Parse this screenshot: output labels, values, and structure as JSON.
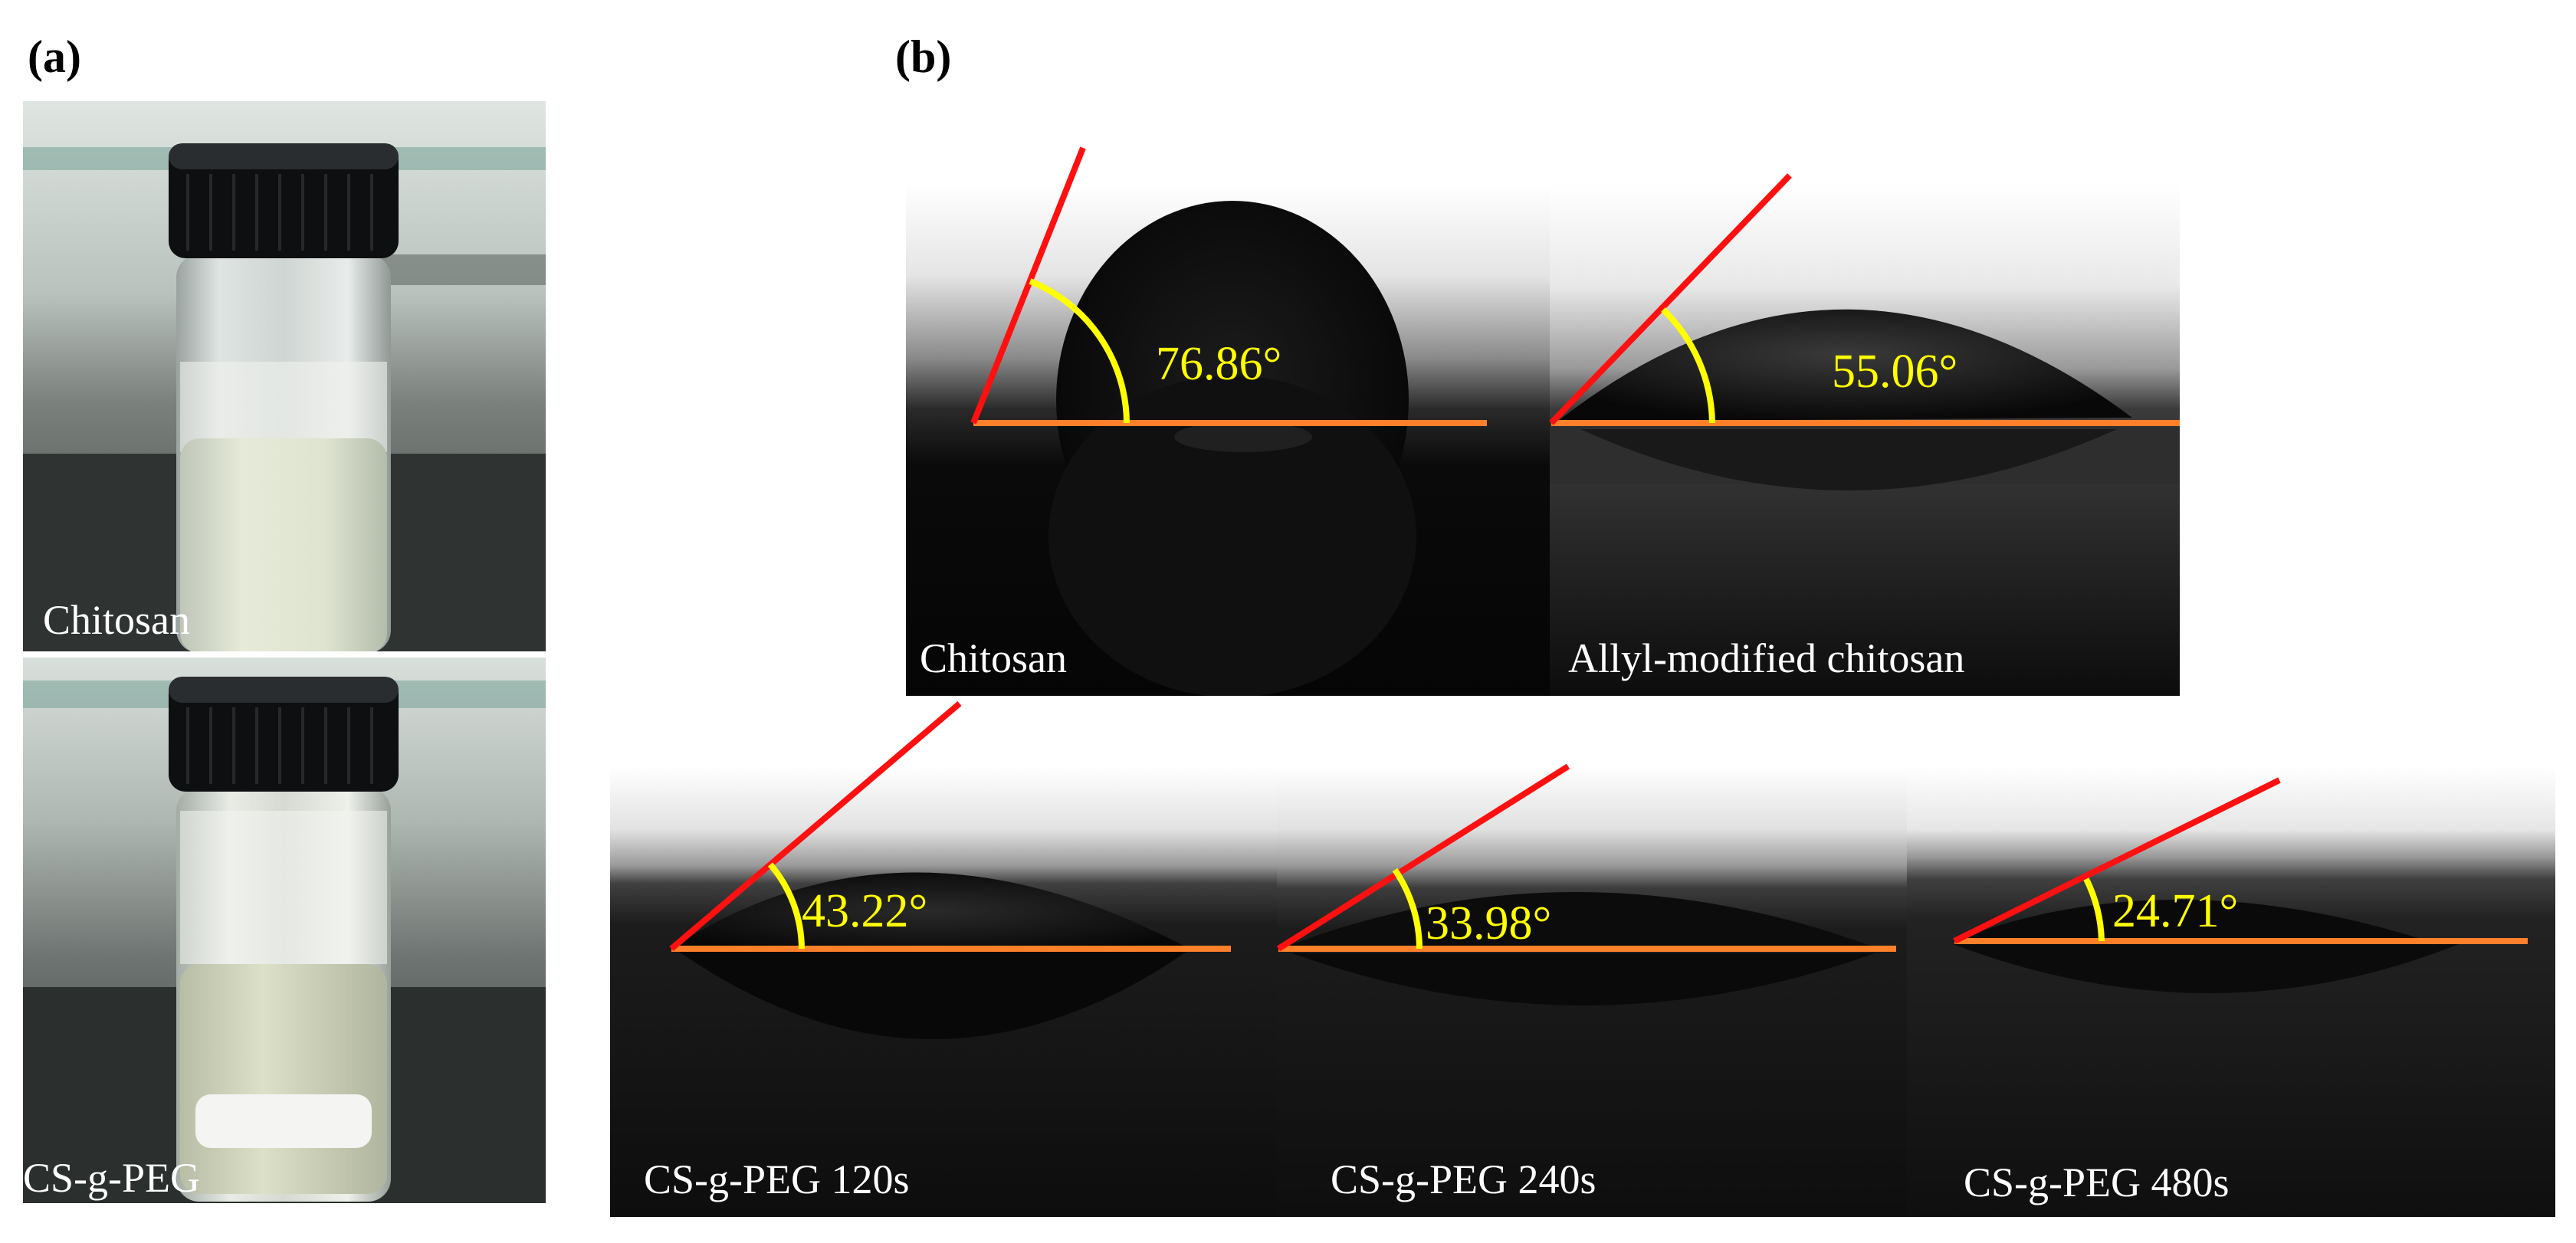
{
  "panels": {
    "a": {
      "label": "(a)",
      "photos": [
        {
          "name": "Chitosan"
        },
        {
          "name": "CS-g-PEG"
        }
      ]
    },
    "b": {
      "label": "(b)",
      "samples": [
        {
          "name": "Chitosan",
          "angle": "76.86°"
        },
        {
          "name": "Allyl-modified chitosan",
          "angle": "55.06°"
        },
        {
          "name": "CS-g-PEG 120s",
          "angle": "43.22°"
        },
        {
          "name": "CS-g-PEG 240s",
          "angle": "33.98°"
        },
        {
          "name": "CS-g-PEG 480s",
          "angle": "24.71°"
        }
      ]
    }
  },
  "colors": {
    "baseline": "#ff7f2a",
    "tangent": "#ff1010",
    "angle_arc": "#ffff00",
    "label_text": "#ffffff"
  }
}
